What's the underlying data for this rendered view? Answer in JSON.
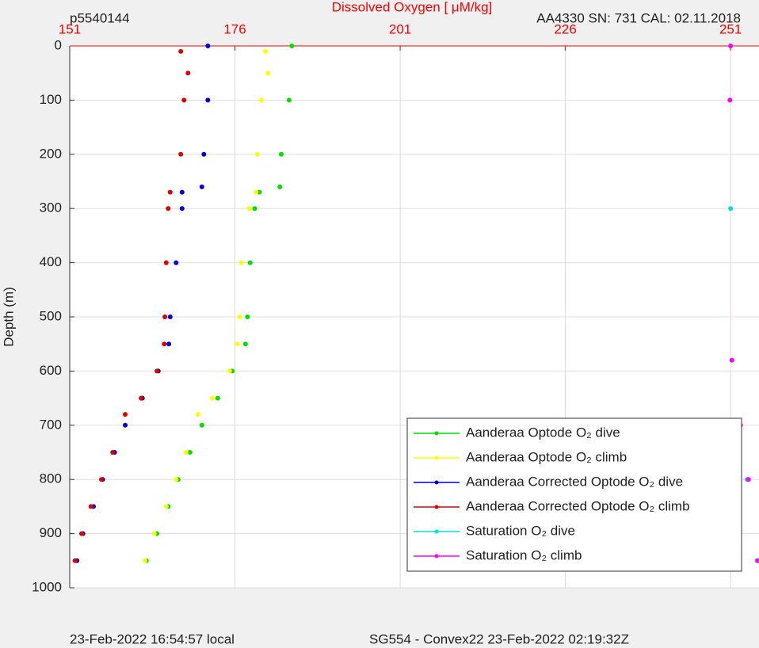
{
  "chart_data": {
    "type": "scatter",
    "title": "Dissolved Oxygen [ μM/kg]",
    "top_left_label": "p5540144",
    "top_right_label": "AA4330   SN: 731   CAL: 02.11.2018",
    "bottom_left_label": "23-Feb-2022 16:54:57 local",
    "bottom_center_label": "SG554 - Convex22 23-Feb-2022 02:19:32Z",
    "y_label": "Depth (m)",
    "xlim": [
      151,
      255.3
    ],
    "xticks": [
      151,
      176,
      201,
      226,
      251
    ],
    "ylim": [
      0,
      1000
    ],
    "yticks": [
      0,
      100,
      200,
      300,
      400,
      500,
      600,
      700,
      800,
      900,
      1000
    ],
    "y_inverted": true,
    "x_axis_position": "top",
    "grid": true,
    "legend": "lower right",
    "title_color": "#ff0000",
    "series": [
      {
        "name": "Aanderaa Optode O₂ dive",
        "color": "#00e000",
        "x": [
          184.6,
          184.2,
          183,
          182.8,
          179.7,
          179,
          178.3,
          177.9,
          177.6,
          175.6,
          173.4,
          171,
          169.2,
          167.4,
          165.9,
          164.2,
          162.6
        ],
        "y": [
          0,
          100,
          200,
          260,
          270,
          300,
          400,
          500,
          550,
          600,
          650,
          700,
          750,
          800,
          850,
          900,
          950
        ]
      },
      {
        "name": "Aanderaa Optode O₂ climb",
        "color": "#ffff00",
        "x": [
          180.6,
          181,
          180,
          179.4,
          179.2,
          178.2,
          177,
          176.7,
          176.4,
          175.2,
          172.6,
          170.4,
          168.6,
          167.1,
          165.6,
          163.8,
          162.4
        ],
        "y": [
          10,
          50,
          100,
          200,
          270,
          300,
          400,
          500,
          550,
          600,
          650,
          680,
          750,
          800,
          850,
          900,
          950
        ]
      },
      {
        "name": "Aanderaa Corrected Optode O₂ dive",
        "color": "#0000e0",
        "x": [
          171.9,
          171.9,
          171.3,
          171,
          168,
          168,
          167.1,
          166.2,
          166,
          164.4,
          162,
          159.4,
          157.8,
          156,
          154.6,
          153,
          152.1
        ],
        "y": [
          0,
          100,
          200,
          260,
          270,
          300,
          400,
          500,
          550,
          600,
          650,
          700,
          750,
          800,
          850,
          900,
          950
        ]
      },
      {
        "name": "Aanderaa Corrected Optode O₂ climb",
        "color": "#e00000",
        "x": [
          167.8,
          168.9,
          168.3,
          167.8,
          166.2,
          165.9,
          165.6,
          165.4,
          165.3,
          164.2,
          161.8,
          159.4,
          157.5,
          155.8,
          154.2,
          152.8,
          151.8
        ],
        "y": [
          10,
          50,
          100,
          200,
          270,
          300,
          400,
          500,
          550,
          600,
          650,
          680,
          750,
          800,
          850,
          900,
          950
        ]
      },
      {
        "name": "Saturation O₂ dive",
        "color": "#00e0e0",
        "x": [
          251,
          251,
          251.2,
          252.3,
          253.5,
          255
        ],
        "y": [
          0,
          300,
          580,
          700,
          800,
          950
        ]
      },
      {
        "name": "Saturation O₂ climb",
        "color": "#ff00ff",
        "x": [
          251,
          250.9,
          251.2,
          252.5,
          253.7,
          255.1
        ],
        "y": [
          0,
          100,
          580,
          700,
          800,
          950
        ]
      }
    ]
  }
}
